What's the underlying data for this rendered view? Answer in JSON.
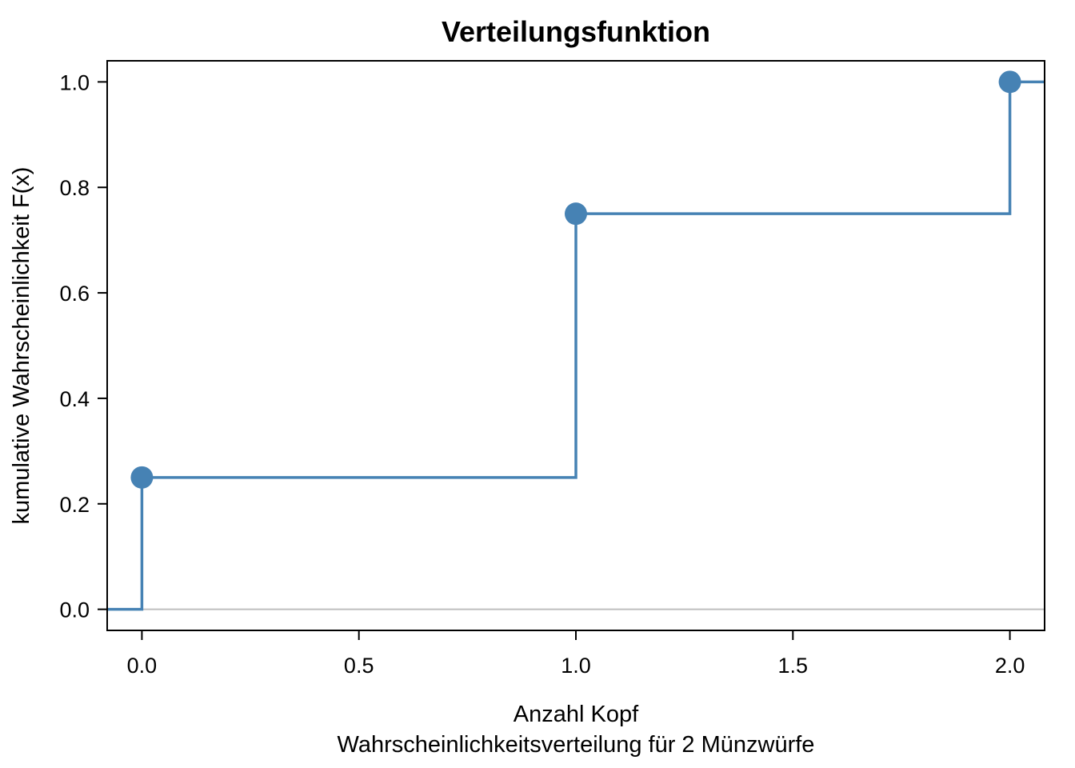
{
  "chart_data": {
    "type": "step",
    "title": "Verteilungsfunktion",
    "xlabel": "Anzahl Kopf",
    "subtitle": "Wahrscheinlichkeitsverteilung für 2 Münzwürfe",
    "ylabel": "kumulative Wahrscheinlichkeit F(x)",
    "xlim": [
      -0.08,
      2.08
    ],
    "ylim": [
      -0.04,
      1.04
    ],
    "x_ticks": [
      0.0,
      0.5,
      1.0,
      1.5,
      2.0
    ],
    "x_tick_labels": [
      "0.0",
      "0.5",
      "1.0",
      "1.5",
      "2.0"
    ],
    "y_ticks": [
      0.0,
      0.2,
      0.4,
      0.6,
      0.8,
      1.0
    ],
    "y_tick_labels": [
      "0.0",
      "0.2",
      "0.4",
      "0.6",
      "0.8",
      "1.0"
    ],
    "series": [
      {
        "x": [
          0,
          1,
          2
        ],
        "y": [
          0.25,
          0.75,
          1.0
        ]
      }
    ],
    "baseline_y": 0,
    "grid": false,
    "colors": {
      "series": "#4682B4",
      "baseline": "#bebebe",
      "frame": "#000000"
    }
  }
}
